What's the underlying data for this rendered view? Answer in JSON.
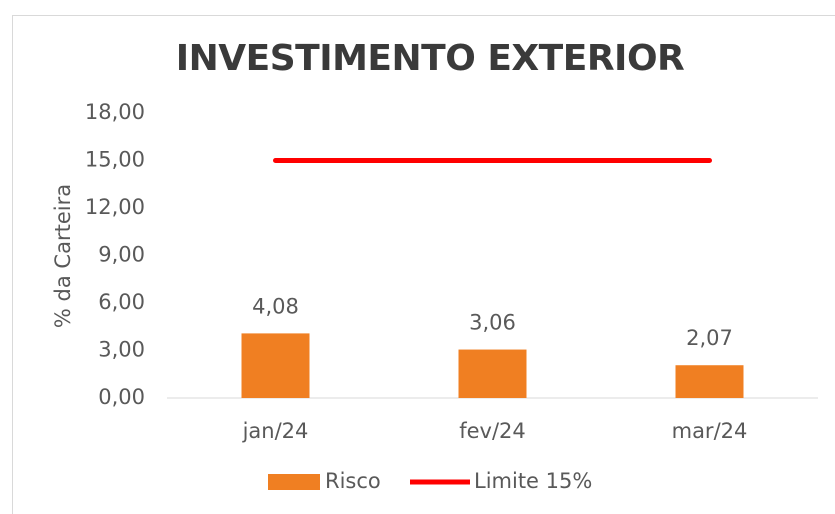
{
  "chart_data": {
    "type": "bar",
    "title": "INVESTIMENTO EXTERIOR",
    "y_label": "% da Carteira",
    "categories": [
      "jan/24",
      "fev/24",
      "mar/24"
    ],
    "series": [
      {
        "name": "Risco",
        "type": "bar",
        "color": "#f07f22",
        "values": [
          4.08,
          3.06,
          2.07
        ],
        "value_labels": [
          "4,08",
          "3,06",
          "2,07"
        ]
      },
      {
        "name": "Limite 15%",
        "type": "line",
        "color": "#ff0000",
        "values": [
          15,
          15,
          15
        ]
      }
    ],
    "ylim": [
      0,
      18
    ],
    "yticks": [
      {
        "value": 0,
        "label": "0,00"
      },
      {
        "value": 3,
        "label": "3,00"
      },
      {
        "value": 6,
        "label": "6,00"
      },
      {
        "value": 9,
        "label": "9,00"
      },
      {
        "value": 12,
        "label": "12,00"
      },
      {
        "value": 15,
        "label": "15,00"
      },
      {
        "value": 18,
        "label": "18,00"
      }
    ],
    "grid": false,
    "legend": "bottom"
  }
}
